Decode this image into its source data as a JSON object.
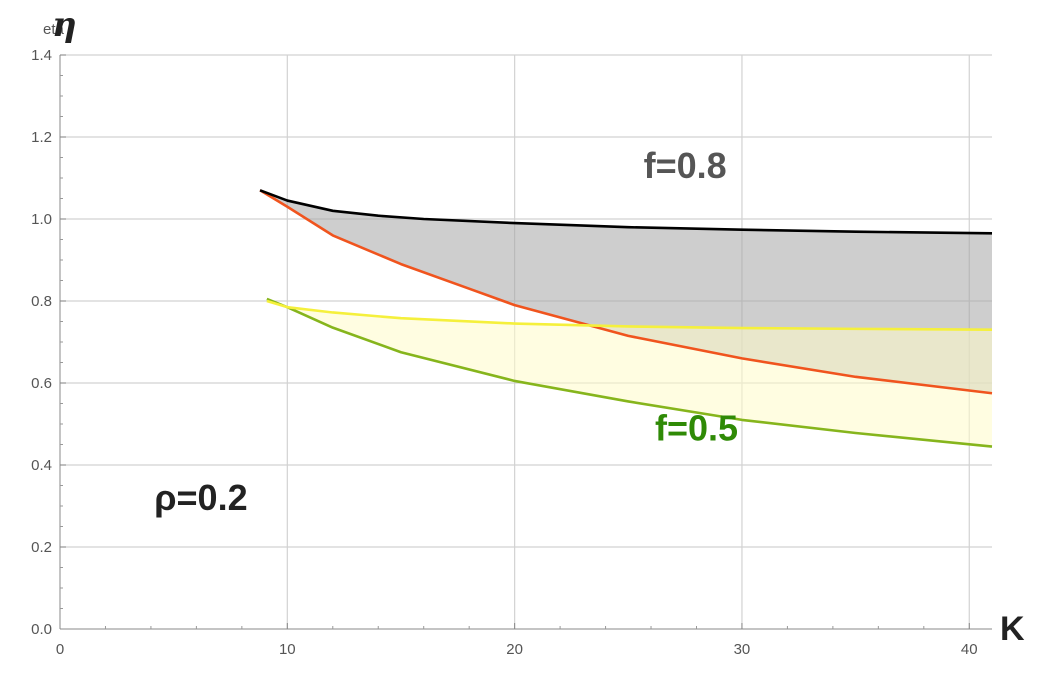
{
  "chart_data": {
    "type": "area",
    "title": "",
    "xlabel": "K",
    "ylabel": "η",
    "ylabel_small": "eta",
    "xlim": [
      0,
      41
    ],
    "ylim": [
      0,
      1.4
    ],
    "xticks": [
      0,
      10,
      20,
      30,
      40
    ],
    "yticks": [
      0.0,
      0.2,
      0.4,
      0.6,
      0.8,
      1.0,
      1.2,
      1.4
    ],
    "xtick_labels": [
      "0",
      "10",
      "20",
      "30",
      "40"
    ],
    "ytick_labels": [
      "0.0",
      "0.2",
      "0.4",
      "0.6",
      "0.8",
      "1.0",
      "1.2",
      "1.4"
    ],
    "grid": true,
    "series": [
      {
        "upper_color": "#000000",
        "lower_color": "#f0541e",
        "fill_color": "#a6a6a6",
        "upper": {
          "x": [
            8.8,
            10,
            12,
            14,
            16,
            20,
            25,
            30,
            35,
            41
          ],
          "y": [
            1.07,
            1.045,
            1.02,
            1.008,
            1.0,
            0.99,
            0.98,
            0.974,
            0.969,
            0.965
          ]
        },
        "lower": {
          "x": [
            8.8,
            10,
            12,
            15,
            18,
            20,
            25,
            30,
            35,
            41
          ],
          "y": [
            1.07,
            1.03,
            0.96,
            0.89,
            0.83,
            0.79,
            0.715,
            0.66,
            0.615,
            0.575
          ]
        }
      },
      {
        "upper_color": "#f5f03c",
        "lower_color": "#86b51c",
        "fill_color": "#fffcc8",
        "upper": {
          "x": [
            9.1,
            10,
            12,
            15,
            20,
            25,
            30,
            35,
            41
          ],
          "y": [
            0.8,
            0.785,
            0.772,
            0.758,
            0.745,
            0.738,
            0.734,
            0.732,
            0.73
          ]
        },
        "lower": {
          "x": [
            9.1,
            10,
            12,
            15,
            20,
            25,
            30,
            35,
            41
          ],
          "y": [
            0.805,
            0.785,
            0.735,
            0.675,
            0.605,
            0.555,
            0.51,
            0.478,
            0.445
          ]
        }
      }
    ],
    "annotations": [
      {
        "text": "f=0.8",
        "x": 27.5,
        "y": 1.1,
        "color": "#555555"
      },
      {
        "text": "f=0.5",
        "x": 28,
        "y": 0.46,
        "color": "#2f8a06"
      },
      {
        "text": "ρ=0.2",
        "x": 6.2,
        "y": 0.29,
        "color": "#222222"
      }
    ]
  }
}
